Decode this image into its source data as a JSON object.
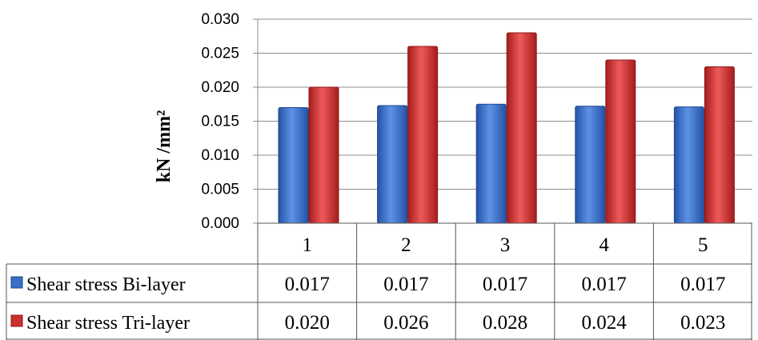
{
  "chart_data": {
    "type": "bar",
    "title": "",
    "xlabel": "",
    "ylabel": "kN /mm²",
    "ylim": [
      0,
      0.03
    ],
    "y_ticks": [
      "0.000",
      "0.005",
      "0.010",
      "0.015",
      "0.020",
      "0.025",
      "0.030"
    ],
    "grid": true,
    "legend": "data table (left column)",
    "categories": [
      "1",
      "2",
      "3",
      "4",
      "5"
    ],
    "series": [
      {
        "name": "Shear stress Bi-layer",
        "color": "#3a6fc7",
        "values": [
          0.017,
          0.0173,
          0.0175,
          0.0172,
          0.0171
        ],
        "table_labels": [
          "0.017",
          "0.017",
          "0.017",
          "0.017",
          "0.017"
        ]
      },
      {
        "name": "Shear stress Tri-layer",
        "color": "#cc2f2f",
        "values": [
          0.02,
          0.026,
          0.028,
          0.024,
          0.023
        ],
        "table_labels": [
          "0.020",
          "0.026",
          "0.028",
          "0.024",
          "0.023"
        ]
      }
    ]
  }
}
